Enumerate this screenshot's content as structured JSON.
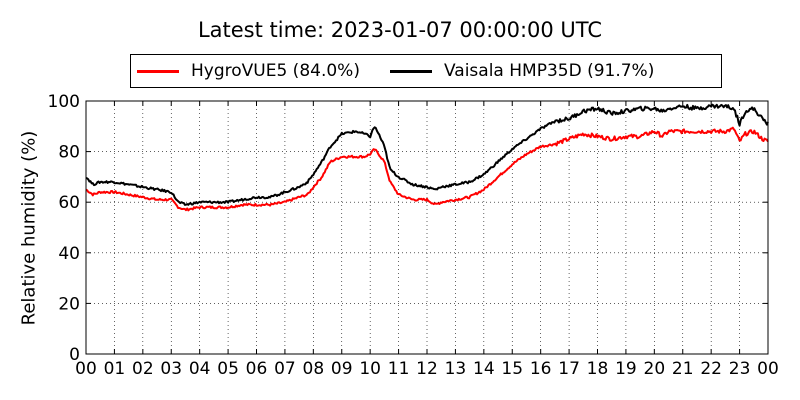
{
  "chart_data": {
    "type": "line",
    "title": "Latest time: 2023-01-07 00:00:00 UTC",
    "xlabel": "",
    "ylabel": "Relative humidity (%)",
    "xlim": [
      0,
      24
    ],
    "ylim": [
      0,
      100
    ],
    "x_ticks": [
      "00",
      "01",
      "02",
      "03",
      "04",
      "05",
      "06",
      "07",
      "08",
      "09",
      "10",
      "11",
      "12",
      "13",
      "14",
      "15",
      "16",
      "17",
      "18",
      "19",
      "20",
      "21",
      "22",
      "23",
      "00"
    ],
    "y_ticks": [
      0,
      20,
      40,
      60,
      80,
      100
    ],
    "grid": true,
    "legend_position": "top",
    "series": [
      {
        "name": "HygroVUE5 (84.0%)",
        "color": "#ff0000",
        "x": [
          0,
          0.25,
          0.5,
          1,
          1.5,
          2,
          2.5,
          3,
          3.25,
          3.5,
          4,
          4.5,
          5,
          5.5,
          6,
          6.5,
          7,
          7.5,
          7.8,
          8,
          8.3,
          8.6,
          9,
          9.5,
          9.8,
          10,
          10.15,
          10.3,
          10.5,
          10.7,
          11,
          11.5,
          12,
          12.3,
          12.5,
          13,
          13.5,
          14,
          14.5,
          15,
          15.5,
          16,
          16.5,
          17,
          17.5,
          18,
          18.5,
          19,
          19.5,
          20,
          20.3,
          20.5,
          21,
          21.5,
          22,
          22.5,
          22.8,
          23,
          23.2,
          23.5,
          23.8,
          24
        ],
        "y": [
          65,
          63,
          64,
          64,
          63,
          62,
          61,
          61,
          58,
          57,
          58,
          58,
          58,
          59,
          59,
          59,
          60,
          62,
          63,
          66,
          70,
          76,
          78,
          78,
          78,
          79,
          81,
          79,
          76,
          68,
          63,
          61,
          61,
          59,
          60,
          61,
          62,
          65,
          70,
          75,
          79,
          82,
          83,
          85,
          87,
          86,
          85,
          86,
          86,
          88,
          86,
          88,
          88,
          88,
          88,
          88,
          89,
          84,
          87,
          88,
          85,
          84
        ]
      },
      {
        "name": "Vaisala HMP35D (91.7%)",
        "color": "#000000",
        "x": [
          0,
          0.25,
          0.5,
          1,
          1.5,
          2,
          2.5,
          3,
          3.25,
          3.5,
          4,
          4.5,
          5,
          5.5,
          6,
          6.5,
          7,
          7.5,
          7.8,
          8,
          8.3,
          8.6,
          9,
          9.5,
          9.8,
          10,
          10.15,
          10.3,
          10.5,
          10.7,
          11,
          11.5,
          12,
          12.3,
          12.5,
          13,
          13.5,
          14,
          14.5,
          15,
          15.5,
          16,
          16.5,
          17,
          17.5,
          18,
          18.5,
          19,
          19.5,
          20,
          20.3,
          20.5,
          21,
          21.5,
          22,
          22.5,
          22.8,
          23,
          23.2,
          23.5,
          23.8,
          24
        ],
        "y": [
          70,
          67,
          68,
          68,
          67,
          66,
          65,
          64,
          60,
          59,
          60,
          60,
          60,
          61,
          62,
          62,
          64,
          66,
          68,
          71,
          76,
          82,
          87,
          88,
          87,
          86,
          90,
          87,
          82,
          73,
          70,
          67,
          66,
          65,
          66,
          67,
          68,
          71,
          76,
          81,
          85,
          89,
          92,
          93,
          96,
          97,
          95,
          96,
          97,
          97,
          96,
          97,
          98,
          97,
          98,
          98,
          97,
          91,
          96,
          97,
          93,
          91
        ]
      }
    ]
  }
}
